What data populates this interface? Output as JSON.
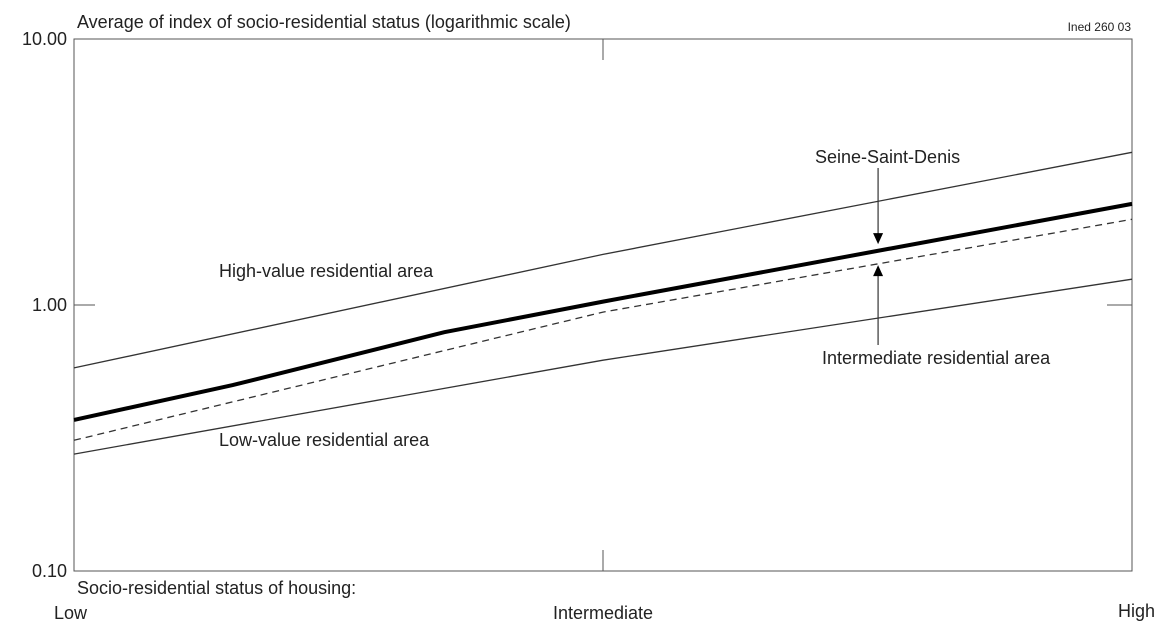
{
  "chart_data": {
    "type": "line",
    "title": "Average of index of socio-residential status (logarithmic scale)",
    "corner_label": "Ined 260 03",
    "xlabel": "Socio-residential status of housing:",
    "x_categories": [
      "Low",
      "Intermediate",
      "High"
    ],
    "x_positions": [
      0,
      0.5,
      1
    ],
    "yscale": "log",
    "ylim": [
      0.1,
      10
    ],
    "yticks": [
      0.1,
      1,
      10
    ],
    "ytick_labels": [
      "0.10",
      "1.00",
      "10.00"
    ],
    "grid": false,
    "series": [
      {
        "key": "high",
        "name": "High-value residential area",
        "style": "thin",
        "x": [
          0,
          0.5,
          1
        ],
        "y": [
          0.58,
          1.55,
          3.75
        ]
      },
      {
        "key": "ssd",
        "name": "Seine-Saint-Denis",
        "style": "thick",
        "x": [
          0,
          0.15,
          0.35,
          0.5,
          1
        ],
        "y": [
          0.37,
          0.5,
          0.79,
          1.03,
          2.4
        ]
      },
      {
        "key": "intermediate",
        "name": "Intermediate residential area",
        "style": "dashed",
        "x": [
          0,
          0.5,
          1
        ],
        "y": [
          0.31,
          0.94,
          2.1
        ]
      },
      {
        "key": "low",
        "name": "Low-value residential area",
        "style": "thin",
        "x": [
          0,
          0.5,
          1
        ],
        "y": [
          0.275,
          0.62,
          1.25
        ]
      }
    ],
    "annotations": {
      "seine_arrow_x": 0.76,
      "seine_value": 1.65,
      "intermediate_value": 1.45
    }
  }
}
